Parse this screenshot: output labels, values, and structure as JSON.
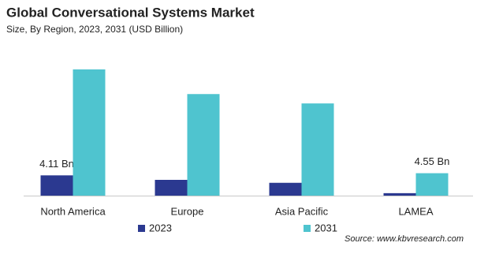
{
  "chart_data": {
    "type": "bar",
    "title": "Global Conversational Systems Market",
    "subtitle": "Size, By Region, 2023, 2031 (USD Billion)",
    "categories": [
      "North America",
      "Europe",
      "Asia Pacific",
      "LAMEA"
    ],
    "series": [
      {
        "name": "2023",
        "color": "#2b3990",
        "values": [
          4.11,
          3.2,
          2.6,
          0.5
        ],
        "value_labels": [
          "4.11 Bn",
          null,
          null,
          null
        ]
      },
      {
        "name": "2031",
        "color": "#4fc4cf",
        "values": [
          25.6,
          20.6,
          18.7,
          4.55
        ],
        "value_labels": [
          null,
          null,
          null,
          "4.55 Bn"
        ]
      }
    ],
    "source": "Source: www.kbvresearch.com"
  }
}
